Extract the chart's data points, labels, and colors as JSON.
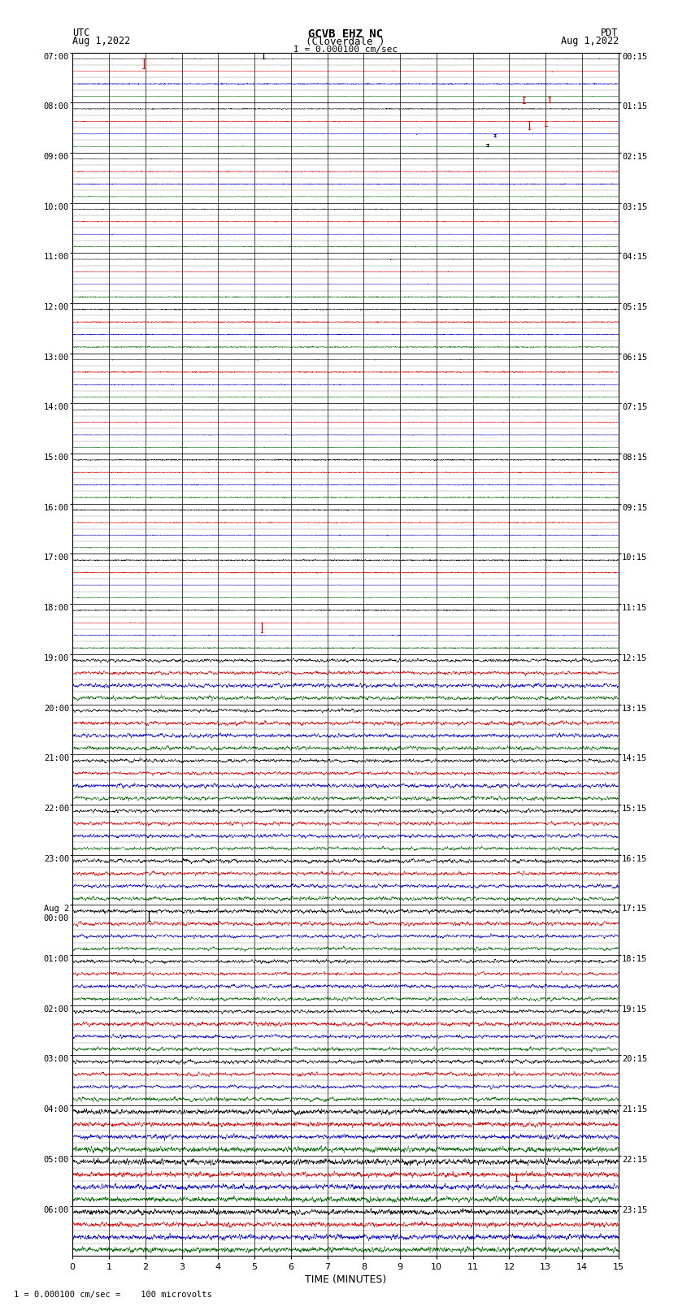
{
  "title_line1": "GCVB EHZ NC",
  "title_line2": "(Cloverdale )",
  "scale_text": "I = 0.000100 cm/sec",
  "left_label_top": "UTC",
  "left_label_date": "Aug 1,2022",
  "right_label_top": "PDT",
  "right_label_date": "Aug 1,2022",
  "xlabel": "TIME (MINUTES)",
  "footnote": "1 = 0.000100 cm/sec =    100 microvolts",
  "utc_labels": [
    "07:00",
    "08:00",
    "09:00",
    "10:00",
    "11:00",
    "12:00",
    "13:00",
    "14:00",
    "15:00",
    "16:00",
    "17:00",
    "18:00",
    "19:00",
    "20:00",
    "21:00",
    "22:00",
    "23:00",
    "Aug 2\n00:00",
    "01:00",
    "02:00",
    "03:00",
    "04:00",
    "05:00",
    "06:00"
  ],
  "pdt_labels": [
    "00:15",
    "01:15",
    "02:15",
    "03:15",
    "04:15",
    "05:15",
    "06:15",
    "07:15",
    "08:15",
    "09:15",
    "10:15",
    "11:15",
    "12:15",
    "13:15",
    "14:15",
    "15:15",
    "16:15",
    "17:15",
    "18:15",
    "19:15",
    "20:15",
    "21:15",
    "22:15",
    "23:15"
  ],
  "n_rows": 24,
  "n_cols": 4,
  "minutes": 15,
  "bg_color": "#ffffff",
  "trace_colors": [
    "#000000",
    "#dd0000",
    "#0000cc",
    "#006600"
  ],
  "grid_color": "#555555",
  "sub_grid_color": "#999999"
}
